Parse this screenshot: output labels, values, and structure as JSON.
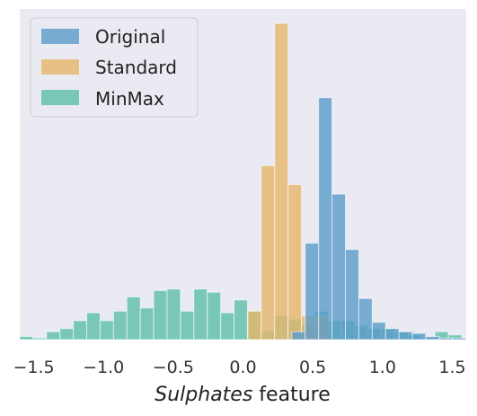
{
  "chart_data": {
    "type": "histogram",
    "xlabel_italic": "Sulphates",
    "xlabel_rest": " feature",
    "xlim": [
      -1.6,
      1.6
    ],
    "ylim": [
      0,
      1.0
    ],
    "y_ticks_shown": false,
    "grid": false,
    "background": "#eaeaf2",
    "legend_position": "top-left",
    "x_ticks": [
      {
        "value": -1.5,
        "label": "−1.5"
      },
      {
        "value": -1.0,
        "label": "−1.0"
      },
      {
        "value": -0.5,
        "label": "−0.5"
      },
      {
        "value": 0.0,
        "label": "0.0"
      },
      {
        "value": 0.5,
        "label": "0.5"
      },
      {
        "value": 1.0,
        "label": "1.0"
      },
      {
        "value": 1.5,
        "label": "1.5"
      }
    ],
    "series": [
      {
        "name": "Original",
        "color": "#5a9bc9",
        "bin_width": 0.096,
        "start": 0.35,
        "counts": [
          0.025,
          0.305,
          0.765,
          0.46,
          0.285,
          0.13,
          0.055,
          0.035,
          0.025,
          0.02,
          0.01,
          0.005,
          0.005
        ]
      },
      {
        "name": "Standard",
        "color": "#e6b56a",
        "bin_width": 0.096,
        "start": 0.035,
        "counts": [
          0.09,
          0.55,
          1.0,
          0.49,
          0.075,
          0.075
        ]
      },
      {
        "name": "MinMax",
        "color": "#5dbfa6",
        "bin_width": 0.096,
        "start": -1.6,
        "counts": [
          0.01,
          0.005,
          0.025,
          0.035,
          0.06,
          0.085,
          0.06,
          0.09,
          0.135,
          0.1,
          0.155,
          0.16,
          0.09,
          0.16,
          0.15,
          0.085,
          0.125,
          0.09,
          0.03,
          0.075,
          0.065,
          0.045,
          0.09,
          0.06,
          0.06,
          0.045,
          0.035,
          0.035,
          0.025,
          0.015,
          0.005,
          0.025,
          0.015
        ]
      }
    ]
  }
}
